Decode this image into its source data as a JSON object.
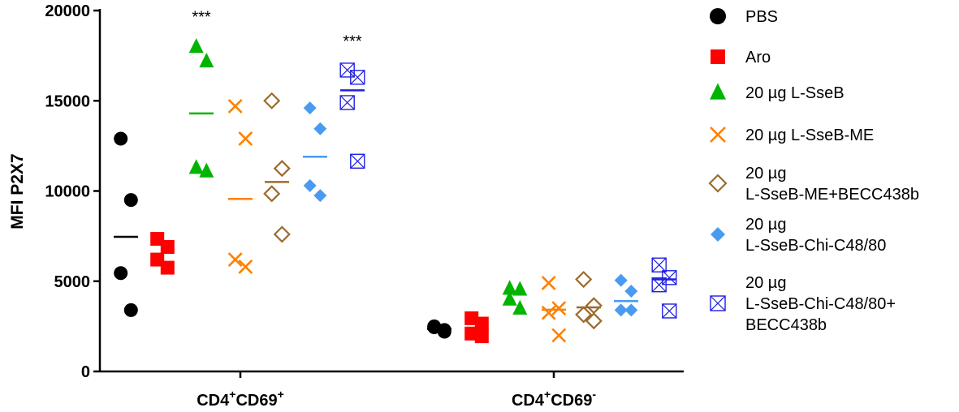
{
  "chart_data": {
    "type": "scatter",
    "ylabel": "MFI P2X7",
    "ylim": [
      0,
      20000
    ],
    "yticks": [
      0,
      5000,
      10000,
      15000,
      20000
    ],
    "ytick_labels": [
      "0",
      "5000",
      "10000",
      "15000",
      "20000"
    ],
    "groups": [
      {
        "label_main": "CD4",
        "sup1": "+",
        "mid": "CD69",
        "sup2": "+"
      },
      {
        "label_main": "CD4",
        "sup1": "+",
        "mid": "CD69",
        "sup2": "-"
      }
    ],
    "series": [
      {
        "name": "PBS",
        "color": "#000000",
        "marker": "circle",
        "values": [
          [
            12900,
            9500,
            5450,
            3400
          ],
          [
            2500,
            2300,
            2450,
            2200
          ]
        ],
        "means": [
          7460,
          2360
        ]
      },
      {
        "name": "Aro",
        "color": "#ff0000",
        "marker": "square",
        "values": [
          [
            7350,
            6900,
            6200,
            5750
          ],
          [
            2950,
            2650,
            2100,
            1950
          ]
        ],
        "means": [
          null,
          null
        ]
      },
      {
        "name": "20 µg L-SseB",
        "color": "#00b400",
        "marker": "triangle",
        "values": [
          [
            18000,
            17200,
            11300,
            11100
          ],
          [
            4600,
            4550,
            4000,
            3500
          ]
        ],
        "means": [
          14300,
          null
        ]
      },
      {
        "name": "20 µg L-SseB-ME",
        "color": "#ff8000",
        "marker": "x",
        "values": [
          [
            14700,
            12900,
            6200,
            5800
          ],
          [
            4900,
            3500,
            3250,
            2000
          ]
        ],
        "means": [
          9560,
          3420
        ]
      },
      {
        "name": "20 µg L-SseB-ME+BECC438b",
        "label_lines": [
          "20 µg",
          "L-SseB-ME+BECC438b"
        ],
        "color": "#9c6b2c",
        "marker": "diamond-open",
        "values": [
          [
            15000,
            11250,
            9850,
            7600
          ],
          [
            5100,
            3650,
            3150,
            2800
          ]
        ],
        "means": [
          10500,
          3550
        ]
      },
      {
        "name": "20 µg L-SseB-Chi-C48/80",
        "label_lines": [
          "20 µg",
          "L-SseB-Chi-C48/80"
        ],
        "color": "#4a9bf0",
        "marker": "diamond",
        "values": [
          [
            14600,
            13450,
            10300,
            9750
          ],
          [
            5050,
            4450,
            3400,
            3400
          ]
        ],
        "means": [
          11900,
          3900
        ]
      },
      {
        "name": "20 µg L-SseB-Chi-C48/80+ BECC438b",
        "label_lines": [
          "20 µg",
          "L-SseB-Chi-C48/80+",
          "BECC438b"
        ],
        "color": "#2020e0",
        "marker": "square-x",
        "values": [
          [
            16700,
            16300,
            14900,
            11650
          ],
          [
            5900,
            5200,
            4800,
            3350
          ]
        ],
        "means": [
          15580,
          5100
        ]
      }
    ],
    "annotations": [
      {
        "text": "***",
        "group": 0,
        "series": 2,
        "y": 19700
      },
      {
        "text": "***",
        "group": 0,
        "series": 6,
        "y": 18350
      }
    ]
  }
}
